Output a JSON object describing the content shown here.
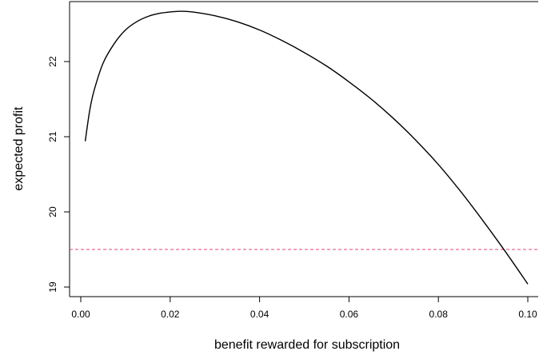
{
  "chart_data": {
    "type": "line",
    "title": "",
    "xlabel": "benefit rewarded for subscription",
    "ylabel": "expected profit",
    "xlim": [
      0.0,
      0.1
    ],
    "ylim": [
      19.0,
      22.7
    ],
    "x_ticks": [
      0.0,
      0.02,
      0.04,
      0.06,
      0.08,
      0.1
    ],
    "x_tick_labels": [
      "0.00",
      "0.02",
      "0.04",
      "0.06",
      "0.08",
      "0.10"
    ],
    "y_ticks": [
      19,
      20,
      21,
      22
    ],
    "y_tick_labels": [
      "19",
      "20",
      "21",
      "22"
    ],
    "grid": false,
    "series": [
      {
        "color": "#000000",
        "style": "solid",
        "x": [
          0.001,
          0.002,
          0.003,
          0.005,
          0.0075,
          0.01,
          0.0125,
          0.015,
          0.0175,
          0.02,
          0.0225,
          0.025,
          0.03,
          0.035,
          0.04,
          0.045,
          0.05,
          0.055,
          0.06,
          0.065,
          0.07,
          0.075,
          0.08,
          0.085,
          0.09,
          0.095,
          0.1
        ],
        "y": [
          20.94,
          21.35,
          21.62,
          21.98,
          22.24,
          22.42,
          22.53,
          22.6,
          22.64,
          22.66,
          22.67,
          22.66,
          22.61,
          22.53,
          22.42,
          22.28,
          22.12,
          21.94,
          21.73,
          21.5,
          21.24,
          20.95,
          20.63,
          20.27,
          19.88,
          19.47,
          19.04
        ]
      }
    ],
    "reference_lines": [
      {
        "orientation": "horizontal",
        "y": 19.5,
        "color": "#e0457b",
        "style": "dashed"
      }
    ]
  }
}
